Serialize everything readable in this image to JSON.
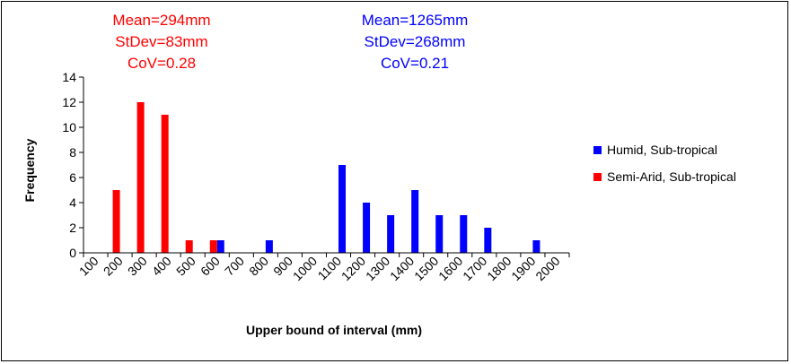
{
  "chart_data": {
    "type": "bar",
    "categories": [
      "100",
      "200",
      "300",
      "400",
      "500",
      "600",
      "700",
      "800",
      "900",
      "1000",
      "1100",
      "1200",
      "1300",
      "1400",
      "1500",
      "1600",
      "1700",
      "1800",
      "1900",
      "2000"
    ],
    "series": [
      {
        "name": "Humid, Sub-tropical",
        "color": "#0000ff",
        "values": [
          0,
          0,
          0,
          0,
          0,
          1,
          0,
          1,
          0,
          0,
          7,
          4,
          3,
          5,
          3,
          3,
          2,
          0,
          1,
          0
        ]
      },
      {
        "name": "Semi-Arid, Sub-tropical",
        "color": "#ff0000",
        "values": [
          0,
          5,
          12,
          11,
          1,
          1,
          0,
          0,
          0,
          0,
          0,
          0,
          0,
          0,
          0,
          0,
          0,
          0,
          0,
          0
        ]
      }
    ],
    "xlabel": "Upper bound of interval (mm)",
    "ylabel": "Frequency",
    "ylim": [
      0,
      14
    ],
    "yticks": [
      "0",
      "2",
      "4",
      "6",
      "8",
      "10",
      "12",
      "14"
    ],
    "legend_position": "right",
    "annotations": [
      {
        "series": "Semi-Arid, Sub-tropical",
        "color": "#ff0000",
        "lines": [
          "Mean=294mm",
          "StDev=83mm",
          "CoV=0.28"
        ]
      },
      {
        "series": "Humid, Sub-tropical",
        "color": "#0000ff",
        "lines": [
          "Mean=1265mm",
          "StDev=268mm",
          "CoV=0.21"
        ]
      }
    ]
  }
}
